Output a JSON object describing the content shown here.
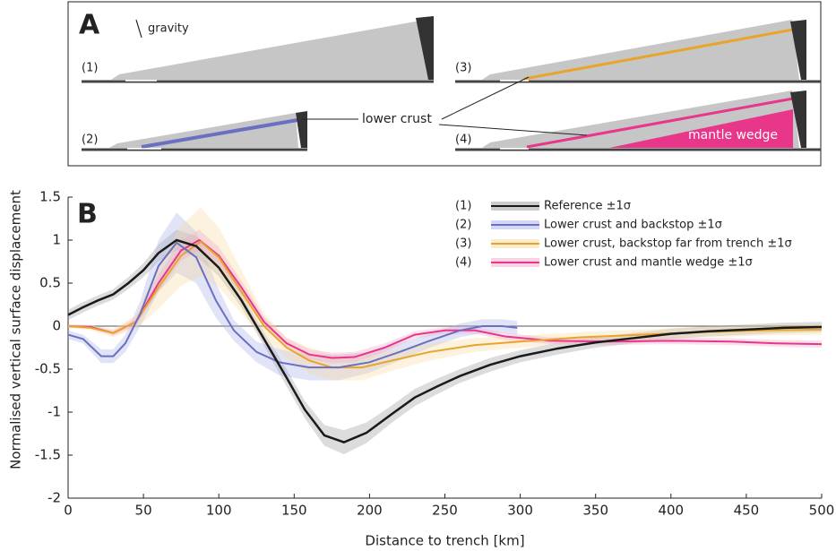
{
  "panel_a": {
    "label": "A",
    "gravity": "gravity",
    "cases": [
      "(1)",
      "(2)",
      "(3)",
      "(4)"
    ],
    "lower_crust": "lower crust",
    "mantle_wedge": "mantle wedge"
  },
  "chart_data": {
    "type": "line",
    "panel_label": "B",
    "xlabel": "Distance to trench [km]",
    "ylabel": "Normalised vertical surface displacement",
    "xlim": [
      0,
      500
    ],
    "ylim": [
      -2,
      1.5
    ],
    "xticks": [
      0,
      50,
      100,
      150,
      200,
      250,
      300,
      350,
      400,
      450,
      500
    ],
    "yticks": [
      1.5,
      1,
      0.5,
      0,
      -0.5,
      -1,
      -1.5,
      -2
    ],
    "series": [
      {
        "name": "Reference ±1σ",
        "case": "(1)",
        "color": "#1a1a1a",
        "band_color": "#9a9a9a",
        "x": [
          0,
          10,
          20,
          30,
          40,
          50,
          60,
          72,
          85,
          100,
          115,
          130,
          145,
          157,
          170,
          183,
          198,
          215,
          230,
          245,
          260,
          280,
          300,
          325,
          350,
          375,
          400,
          425,
          450,
          475,
          500
        ],
        "values": [
          0.13,
          0.22,
          0.3,
          0.37,
          0.5,
          0.65,
          0.85,
          1.0,
          0.93,
          0.68,
          0.3,
          -0.15,
          -0.6,
          -0.97,
          -1.27,
          -1.35,
          -1.24,
          -1.02,
          -0.83,
          -0.7,
          -0.58,
          -0.45,
          -0.35,
          -0.26,
          -0.19,
          -0.14,
          -0.09,
          -0.06,
          -0.04,
          -0.02,
          -0.01
        ],
        "errors": [
          0.06,
          0.06,
          0.06,
          0.06,
          0.07,
          0.08,
          0.1,
          0.12,
          0.12,
          0.1,
          0.08,
          0.08,
          0.1,
          0.1,
          0.12,
          0.14,
          0.12,
          0.1,
          0.1,
          0.09,
          0.08,
          0.08,
          0.07,
          0.07,
          0.06,
          0.06,
          0.06,
          0.06,
          0.06,
          0.06,
          0.06
        ]
      },
      {
        "name": "Lower crust and backstop  ±1σ",
        "case": "(2)",
        "color": "#6b6fc2",
        "band_color": "#aab0e6",
        "x": [
          0,
          10,
          22,
          30,
          38,
          48,
          60,
          72,
          85,
          98,
          110,
          125,
          140,
          160,
          180,
          200,
          220,
          240,
          260,
          275,
          288,
          298
        ],
        "values": [
          -0.1,
          -0.15,
          -0.35,
          -0.35,
          -0.2,
          0.15,
          0.7,
          0.97,
          0.8,
          0.3,
          -0.05,
          -0.3,
          -0.42,
          -0.48,
          -0.48,
          -0.42,
          -0.3,
          -0.17,
          -0.05,
          0.0,
          0.0,
          -0.02
        ],
        "errors": [
          0.05,
          0.05,
          0.08,
          0.08,
          0.1,
          0.15,
          0.3,
          0.35,
          0.3,
          0.2,
          0.12,
          0.12,
          0.15,
          0.15,
          0.15,
          0.12,
          0.1,
          0.08,
          0.08,
          0.08,
          0.08,
          0.08
        ]
      },
      {
        "name": "Lower crust, backstop far from trench ±1σ",
        "case": "(3)",
        "color": "#e8a52a",
        "band_color": "#f5d9a0",
        "x": [
          0,
          15,
          30,
          45,
          60,
          75,
          88,
          100,
          115,
          130,
          145,
          160,
          175,
          195,
          215,
          240,
          270,
          300,
          340,
          380,
          420,
          460,
          500
        ],
        "values": [
          0,
          -0.02,
          -0.08,
          0.05,
          0.45,
          0.82,
          0.98,
          0.8,
          0.4,
          0.0,
          -0.25,
          -0.4,
          -0.48,
          -0.48,
          -0.4,
          -0.3,
          -0.22,
          -0.18,
          -0.13,
          -0.1,
          -0.07,
          -0.05,
          -0.04
        ],
        "errors": [
          0.02,
          0.03,
          0.05,
          0.08,
          0.25,
          0.35,
          0.4,
          0.35,
          0.25,
          0.15,
          0.12,
          0.15,
          0.15,
          0.15,
          0.12,
          0.1,
          0.08,
          0.07,
          0.06,
          0.06,
          0.06,
          0.06,
          0.06
        ]
      },
      {
        "name": "Lower crust and mantle wedge ±1σ",
        "case": "(4)",
        "color": "#e8368a",
        "band_color": "#f3a6c9",
        "x": [
          0,
          15,
          30,
          45,
          60,
          75,
          87,
          100,
          115,
          130,
          145,
          160,
          175,
          190,
          210,
          230,
          250,
          270,
          290,
          320,
          360,
          400,
          440,
          470,
          500
        ],
        "values": [
          0,
          -0.01,
          -0.08,
          0.05,
          0.5,
          0.88,
          1.0,
          0.82,
          0.45,
          0.05,
          -0.2,
          -0.33,
          -0.37,
          -0.36,
          -0.25,
          -0.1,
          -0.05,
          -0.05,
          -0.12,
          -0.17,
          -0.18,
          -0.17,
          -0.18,
          -0.2,
          -0.21
        ],
        "errors": [
          0.02,
          0.02,
          0.03,
          0.05,
          0.1,
          0.12,
          0.12,
          0.1,
          0.08,
          0.06,
          0.06,
          0.06,
          0.06,
          0.06,
          0.05,
          0.04,
          0.04,
          0.04,
          0.04,
          0.04,
          0.04,
          0.04,
          0.04,
          0.04,
          0.04
        ]
      }
    ]
  }
}
